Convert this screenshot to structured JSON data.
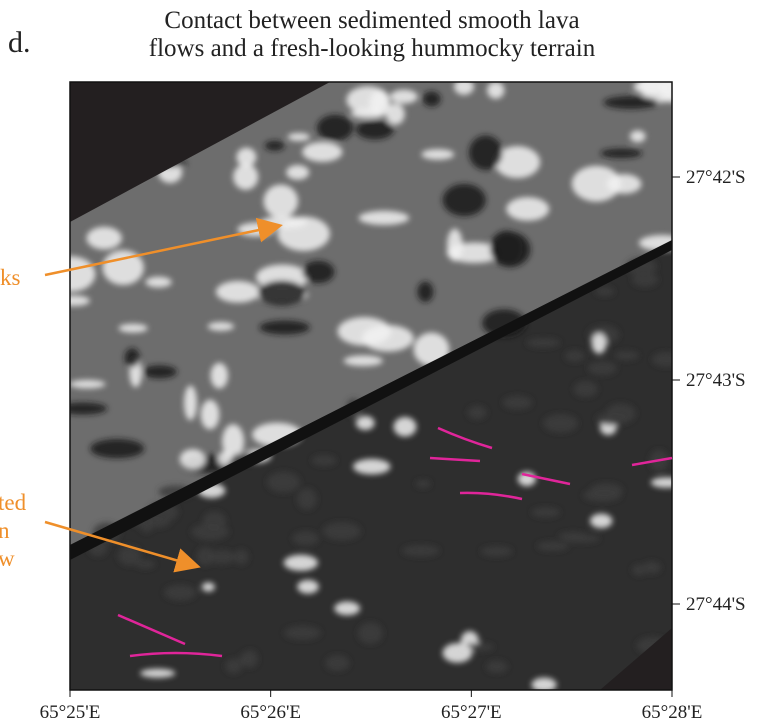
{
  "panel_label": "d.",
  "title": [
    "Contact between sedimented smooth lava",
    "flows and a fresh-looking hummocky terrain"
  ],
  "annotations": [
    {
      "lines": [
        "ks"
      ]
    },
    {
      "lines": [
        "ted",
        "n",
        "w"
      ]
    }
  ],
  "x_axis": {
    "ticks": [
      "65°25'E",
      "65°26'E",
      "65°27'E",
      "65°28'E"
    ]
  },
  "y_axis": {
    "ticks": [
      "27°42'S",
      "27°43'S",
      "27°44'S"
    ]
  }
}
